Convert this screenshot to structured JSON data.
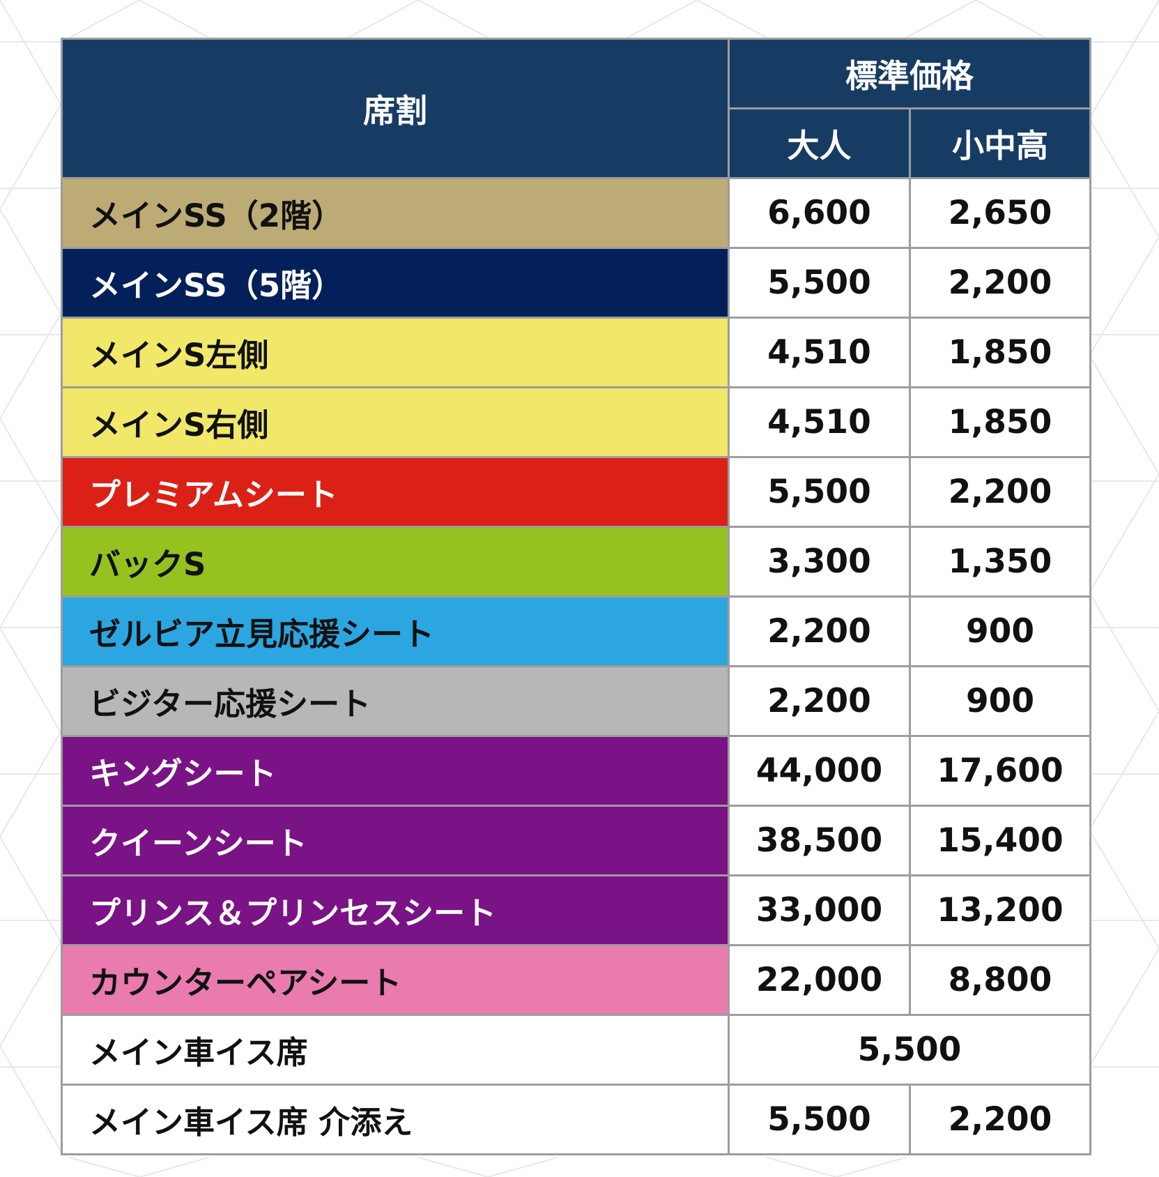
{
  "header": {
    "seat_label": "席割",
    "standard_price_label": "標準価格",
    "adult_label": "大人",
    "child_label": "小中高"
  },
  "rows": [
    {
      "seat": "メインSS（2階）",
      "adult": "6,600",
      "child": "2,650",
      "bg": "#bcab74",
      "fg": "#111111"
    },
    {
      "seat": "メインSS（5階）",
      "adult": "5,500",
      "child": "2,200",
      "bg": "#04205a",
      "fg": "#ffffff"
    },
    {
      "seat": "メインS左側",
      "adult": "4,510",
      "child": "1,850",
      "bg": "#f1e86a",
      "fg": "#111111"
    },
    {
      "seat": "メインS右側",
      "adult": "4,510",
      "child": "1,850",
      "bg": "#f1e86a",
      "fg": "#111111"
    },
    {
      "seat": "プレミアムシート",
      "adult": "5,500",
      "child": "2,200",
      "bg": "#db2116",
      "fg": "#ffffff"
    },
    {
      "seat": "バックS",
      "adult": "3,300",
      "child": "1,350",
      "bg": "#96c21f",
      "fg": "#111111"
    },
    {
      "seat": "ゼルビア立見応援シート",
      "adult": "2,200",
      "child": "900",
      "bg": "#2ba6e0",
      "fg": "#111111"
    },
    {
      "seat": "ビジター応援シート",
      "adult": "2,200",
      "child": "900",
      "bg": "#b7b7b7",
      "fg": "#111111"
    },
    {
      "seat": "キングシート",
      "adult": "44,000",
      "child": "17,600",
      "bg": "#7a1385",
      "fg": "#ffffff"
    },
    {
      "seat": "クイーンシート",
      "adult": "38,500",
      "child": "15,400",
      "bg": "#7a1385",
      "fg": "#ffffff"
    },
    {
      "seat": "プリンス＆プリンセスシート",
      "adult": "33,000",
      "child": "13,200",
      "bg": "#7a1385",
      "fg": "#ffffff"
    },
    {
      "seat": "カウンターペアシート",
      "adult": "22,000",
      "child": "8,800",
      "bg": "#e97bae",
      "fg": "#111111"
    },
    {
      "seat": "メイン車イス席",
      "merged": "5,500",
      "bg": "#ffffff",
      "fg": "#111111"
    },
    {
      "seat": "メイン車イス席 介添え",
      "adult": "5,500",
      "child": "2,200",
      "bg": "#ffffff",
      "fg": "#111111"
    }
  ]
}
